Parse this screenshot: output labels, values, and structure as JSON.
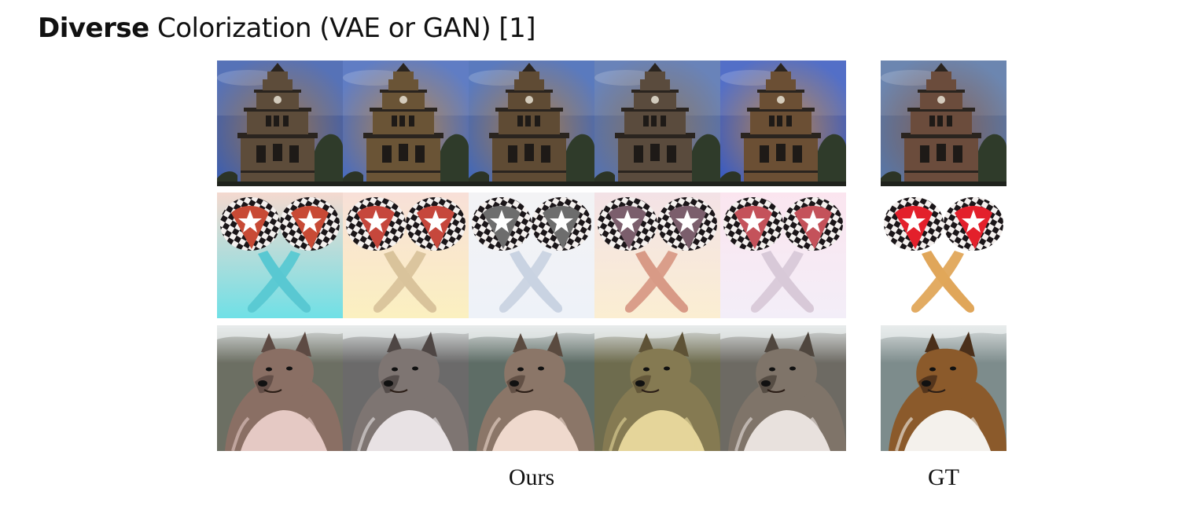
{
  "title": {
    "bold": "Diverse",
    "rest": " Colorization (VAE or GAN) [1]"
  },
  "figure": {
    "rows": [
      {
        "subject": "church-tower",
        "ours_icon": "tower-icon",
        "ours": [
          {
            "sky": "#3f5fae",
            "body": "#5d4c3a",
            "glow": "#a8773e"
          },
          {
            "sky": "#4b6cbc",
            "body": "#6a5436",
            "glow": "#c38a3f"
          },
          {
            "sky": "#4468b6",
            "body": "#5f4b34",
            "glow": "#b87f38"
          },
          {
            "sky": "#5572b0",
            "body": "#5a4b3d",
            "glow": "#8f7555"
          },
          {
            "sky": "#3c5cc0",
            "body": "#6b4f34",
            "glow": "#d08d3c"
          }
        ],
        "gt": {
          "sky": "#5876a6",
          "body": "#6b4c3c",
          "glow": "#8a5c46"
        }
      },
      {
        "subject": "maracas",
        "ours": [
          {
            "bg_top": "#f4d9cf",
            "bg_bottom": "#6fe0e6",
            "head": "#c84a35",
            "handle": "#59c8d2"
          },
          {
            "bg_top": "#f8e0d8",
            "bg_bottom": "#fbf0c0",
            "head": "#c6473c",
            "handle": "#d9c39b"
          },
          {
            "bg_top": "#f3f3f5",
            "bg_bottom": "#eef2f8",
            "head": "#6d6d6d",
            "handle": "#c9d3e2"
          },
          {
            "bg_top": "#f3e2e6",
            "bg_bottom": "#fbeed2",
            "head": "#7b5e6c",
            "handle": "#d89a86"
          },
          {
            "bg_top": "#fbe5ef",
            "bg_bottom": "#f3eef8",
            "head": "#c4525a",
            "handle": "#d8c9d8"
          }
        ],
        "gt": {
          "bg_top": "#ffffff",
          "bg_bottom": "#ffffff",
          "head": "#e3202b",
          "handle": "#e0a65a"
        }
      },
      {
        "subject": "collie-dog",
        "ours": [
          {
            "bg": "#6c6f63",
            "fur": "#8a6f64",
            "chest": "#e5c9c4",
            "face": "#5d4a43"
          },
          {
            "bg": "#6b6a6a",
            "fur": "#7e7572",
            "chest": "#e8e2e4",
            "face": "#4e4644"
          },
          {
            "bg": "#5e6d66",
            "fur": "#8b7668",
            "chest": "#efd9cd",
            "face": "#5a4a3f"
          },
          {
            "bg": "#6e6c4e",
            "fur": "#857a52",
            "chest": "#e5d59a",
            "face": "#5e5236"
          },
          {
            "bg": "#6d6a63",
            "fur": "#7f7469",
            "chest": "#e8e1dd",
            "face": "#4f463e"
          }
        ],
        "gt": {
          "bg": "#7d8c8c",
          "fur": "#8b5a2b",
          "chest": "#f4f1ec",
          "face": "#4a2f1a"
        }
      }
    ],
    "caption_ours": "Ours",
    "caption_gt": "GT"
  }
}
